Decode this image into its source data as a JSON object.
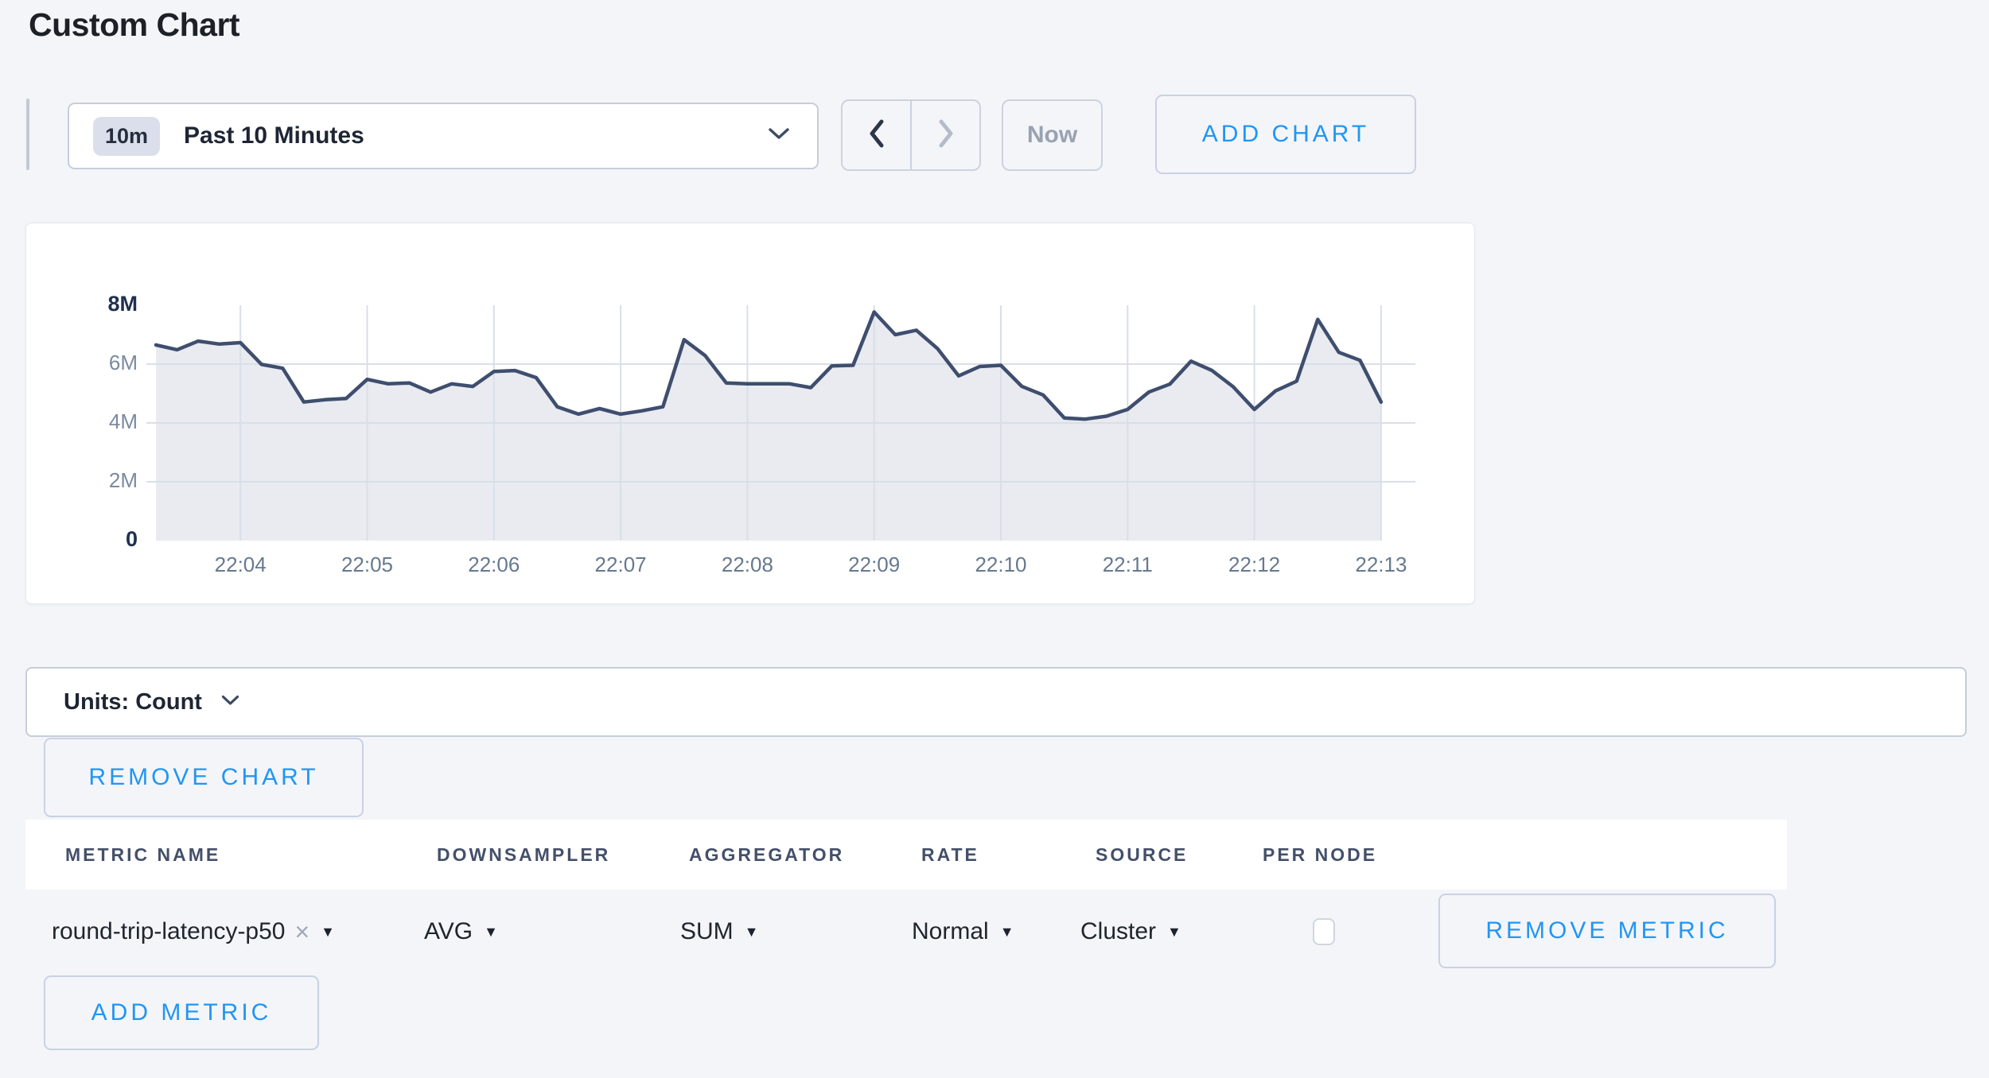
{
  "page": {
    "title": "Custom Chart"
  },
  "toolbar": {
    "time_badge": "10m",
    "time_label": "Past 10 Minutes",
    "now_label": "Now",
    "add_chart_label": "ADD CHART"
  },
  "icons": {
    "caret_down": "▼",
    "clear": "×"
  },
  "chart_data": {
    "type": "area",
    "series_name": "round-trip-latency-p50",
    "title": "",
    "x_start": "22:03:20",
    "x_interval_seconds": 10,
    "x_tick_labels": [
      "22:04",
      "22:05",
      "22:06",
      "22:07",
      "22:08",
      "22:09",
      "22:10",
      "22:11",
      "22:12",
      "22:13"
    ],
    "first_tick_point_index": 4,
    "points_per_tick": 6,
    "y_ticks": [
      {
        "label": "8M",
        "value": 8,
        "bold": true
      },
      {
        "label": "6M",
        "value": 6,
        "bold": false
      },
      {
        "label": "4M",
        "value": 4,
        "bold": false
      },
      {
        "label": "2M",
        "value": 2,
        "bold": false
      },
      {
        "label": "0",
        "value": 0,
        "bold": true
      }
    ],
    "h_grid_values": [
      2,
      4,
      6
    ],
    "ylim_millions": [
      0,
      8
    ],
    "grid": true,
    "legend_position": "none",
    "values_millions": [
      6.65,
      6.49,
      6.78,
      6.68,
      6.73,
      5.99,
      5.86,
      4.71,
      4.79,
      4.83,
      5.48,
      5.33,
      5.36,
      5.05,
      5.33,
      5.24,
      5.75,
      5.78,
      5.54,
      4.55,
      4.3,
      4.49,
      4.3,
      4.41,
      4.55,
      6.83,
      6.29,
      5.36,
      5.33,
      5.33,
      5.33,
      5.2,
      5.94,
      5.96,
      7.77,
      7.0,
      7.15,
      6.53,
      5.6,
      5.92,
      5.96,
      5.24,
      4.95,
      4.17,
      4.13,
      4.23,
      4.46,
      5.05,
      5.32,
      6.1,
      5.78,
      5.23,
      4.46,
      5.09,
      5.42,
      7.52,
      6.4,
      6.13,
      4.71
    ]
  },
  "units_bar": {
    "label": "Units: Count"
  },
  "remove_chart_label": "REMOVE CHART",
  "metrics_table": {
    "headers": [
      "METRIC NAME",
      "DOWNSAMPLER",
      "AGGREGATOR",
      "RATE",
      "SOURCE",
      "PER NODE"
    ],
    "rows": [
      {
        "metric_name": "round-trip-latency-p50",
        "downsampler": "AVG",
        "aggregator": "SUM",
        "rate": "Normal",
        "source": "Cluster",
        "per_node_checked": false,
        "remove_label": "REMOVE METRIC"
      }
    ],
    "add_metric_label": "ADD METRIC"
  },
  "colors": {
    "accent_blue": "#2196f3",
    "line": "#3f4e6e",
    "fill": "#e9ebf1",
    "grid": "#d9dfe8",
    "page_bg": "#f4f5f9",
    "muted_text": "#99a2b1"
  }
}
